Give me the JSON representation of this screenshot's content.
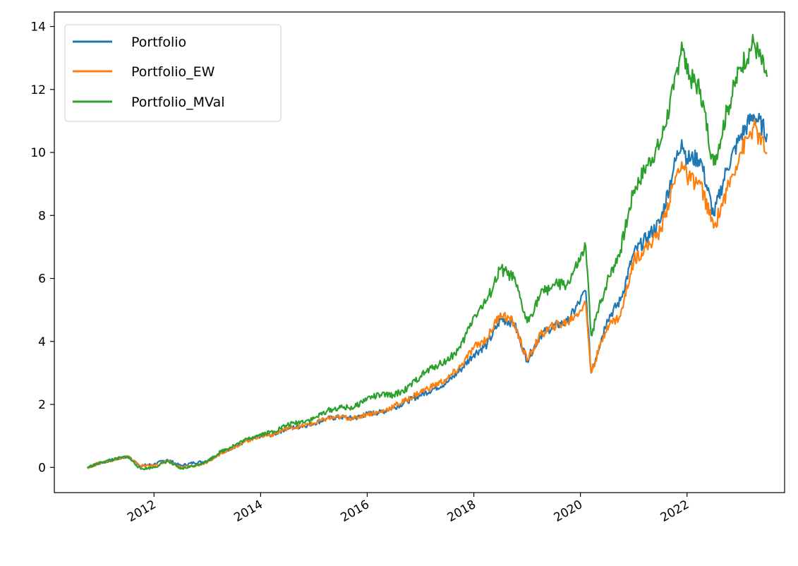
{
  "chart_data": {
    "type": "line",
    "title": "",
    "xlabel": "",
    "ylabel": "",
    "xlim": [
      2010.13,
      2023.83
    ],
    "ylim": [
      -0.8,
      14.46
    ],
    "xticks": [
      2012,
      2014,
      2016,
      2018,
      2020,
      2022
    ],
    "xtick_labels": [
      "2012",
      "2014",
      "2016",
      "2018",
      "2020",
      "2022"
    ],
    "yticks": [
      0,
      2,
      4,
      6,
      8,
      10,
      12,
      14
    ],
    "ytick_labels": [
      "0",
      "2",
      "4",
      "6",
      "8",
      "10",
      "12",
      "14"
    ],
    "grid": false,
    "legend_position": "top-left",
    "x": [
      2010.75,
      2011.0,
      2011.25,
      2011.5,
      2011.75,
      2012.0,
      2012.25,
      2012.5,
      2012.75,
      2013.0,
      2013.25,
      2013.5,
      2013.75,
      2014.0,
      2014.25,
      2014.5,
      2014.75,
      2015.0,
      2015.25,
      2015.5,
      2015.75,
      2016.0,
      2016.25,
      2016.5,
      2016.75,
      2017.0,
      2017.25,
      2017.5,
      2017.75,
      2018.0,
      2018.25,
      2018.5,
      2018.75,
      2019.0,
      2019.25,
      2019.5,
      2019.75,
      2020.0,
      2020.1,
      2020.2,
      2020.5,
      2020.75,
      2021.0,
      2021.25,
      2021.5,
      2021.75,
      2021.9,
      2022.0,
      2022.25,
      2022.5,
      2022.75,
      2023.0,
      2023.25,
      2023.5
    ],
    "series": [
      {
        "name": "Portfolio",
        "color": "#1f77b4",
        "values": [
          0,
          0.15,
          0.25,
          0.35,
          0.05,
          0.1,
          0.25,
          0.05,
          0.15,
          0.2,
          0.45,
          0.65,
          0.85,
          1.0,
          1.05,
          1.25,
          1.3,
          1.4,
          1.55,
          1.6,
          1.55,
          1.7,
          1.75,
          1.9,
          2.1,
          2.3,
          2.5,
          2.7,
          3.1,
          3.6,
          3.9,
          4.7,
          4.6,
          3.4,
          4.2,
          4.5,
          4.6,
          5.3,
          5.6,
          3.0,
          4.7,
          5.3,
          6.8,
          7.3,
          7.8,
          9.5,
          10.4,
          9.8,
          9.8,
          8.0,
          9.5,
          10.5,
          11.2,
          10.6
        ]
      },
      {
        "name": "Portfolio_EW",
        "color": "#ff7f0e",
        "values": [
          0,
          0.15,
          0.25,
          0.35,
          0.05,
          0.05,
          0.2,
          0.0,
          0.05,
          0.15,
          0.45,
          0.65,
          0.85,
          1.0,
          1.05,
          1.25,
          1.3,
          1.4,
          1.55,
          1.6,
          1.55,
          1.7,
          1.75,
          1.95,
          2.15,
          2.4,
          2.6,
          2.8,
          3.2,
          3.8,
          4.1,
          4.9,
          4.6,
          3.4,
          4.2,
          4.5,
          4.6,
          5.0,
          5.2,
          3.0,
          4.5,
          4.8,
          6.6,
          7.0,
          7.5,
          9.0,
          9.7,
          9.2,
          9.0,
          7.6,
          8.8,
          10.0,
          10.8,
          10.0
        ]
      },
      {
        "name": "Portfolio_MVal",
        "color": "#2ca02c",
        "values": [
          0,
          0.15,
          0.25,
          0.35,
          -0.05,
          0.0,
          0.2,
          -0.05,
          0.05,
          0.2,
          0.5,
          0.7,
          0.9,
          1.05,
          1.15,
          1.35,
          1.45,
          1.55,
          1.8,
          1.9,
          1.9,
          2.2,
          2.3,
          2.3,
          2.5,
          2.9,
          3.2,
          3.4,
          3.8,
          4.8,
          5.3,
          6.3,
          6.0,
          4.6,
          5.5,
          5.8,
          5.8,
          6.6,
          7.0,
          4.2,
          5.9,
          6.9,
          8.8,
          9.6,
          10.3,
          12.0,
          13.5,
          12.5,
          12.0,
          9.6,
          11.3,
          12.7,
          13.5,
          12.4
        ]
      }
    ]
  }
}
